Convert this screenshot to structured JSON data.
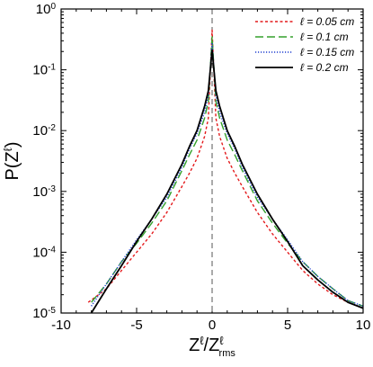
{
  "chart_data": {
    "type": "line",
    "xlabel": {
      "main": "Z",
      "sup": "ℓ",
      "sep": "/Z",
      "sup2": "ℓ",
      "sub": "rms"
    },
    "ylabel": {
      "main": "P(Z",
      "sup": "ℓ",
      "close": ")"
    },
    "xlim": [
      -10,
      10
    ],
    "ylim": [
      1e-05,
      1
    ],
    "yscale": "log",
    "x_ticks": [
      -10,
      -5,
      0,
      5,
      10
    ],
    "x_tick_labels": [
      "-10",
      "-5",
      "0",
      "5",
      "10"
    ],
    "y_ticks": [
      1e-05,
      0.0001,
      0.001,
      0.01,
      0.1,
      1
    ],
    "y_tick_labels": [
      {
        "base": "10",
        "exp": "-5"
      },
      {
        "base": "10",
        "exp": "-4"
      },
      {
        "base": "10",
        "exp": "-3"
      },
      {
        "base": "10",
        "exp": "-2"
      },
      {
        "base": "10",
        "exp": "-1"
      },
      {
        "base": "10",
        "exp": "0"
      }
    ],
    "reference_line_x": 0,
    "legend_position": "top-right",
    "series": [
      {
        "name": "ℓ = 0.05 cm",
        "color": "#e41a1c",
        "dash": "short-dash",
        "x": [
          -8.2,
          -7,
          -6,
          -5,
          -4,
          -3,
          -2,
          -1.5,
          -1,
          -0.5,
          -0.25,
          0,
          0.25,
          0.5,
          1,
          1.5,
          2,
          3,
          4,
          5,
          6,
          7,
          8,
          9,
          10
        ],
        "y": [
          1.5e-05,
          2.5e-05,
          5e-05,
          0.0001,
          0.0002,
          0.00045,
          0.0012,
          0.002,
          0.0035,
          0.008,
          0.016,
          0.45,
          0.016,
          0.008,
          0.0035,
          0.002,
          0.0012,
          0.00045,
          0.0002,
          0.0001,
          5e-05,
          3e-05,
          2e-05,
          1.5e-05,
          1.2e-05
        ]
      },
      {
        "name": "ℓ = 0.1 cm",
        "color": "#33a02c",
        "dash": "long-dash",
        "x": [
          -8,
          -7,
          -6,
          -5,
          -4,
          -3,
          -2,
          -1.5,
          -1,
          -0.5,
          -0.25,
          0,
          0.25,
          0.5,
          1,
          1.5,
          2,
          3,
          4,
          5,
          6,
          7,
          8,
          9,
          10
        ],
        "y": [
          1.5e-05,
          3e-05,
          7e-05,
          0.00014,
          0.0003,
          0.0007,
          0.0022,
          0.004,
          0.007,
          0.016,
          0.03,
          0.35,
          0.03,
          0.016,
          0.007,
          0.004,
          0.0022,
          0.0007,
          0.0003,
          0.00014,
          7e-05,
          4e-05,
          2.5e-05,
          1.6e-05,
          1.3e-05
        ]
      },
      {
        "name": "ℓ = 0.15 cm",
        "color": "#1f3fd1",
        "dash": "dotted",
        "x": [
          -8,
          -7,
          -6,
          -5,
          -4,
          -3,
          -2,
          -1.5,
          -1,
          -0.5,
          -0.25,
          0,
          0.25,
          0.5,
          1,
          1.5,
          2,
          3,
          4,
          5,
          6,
          7,
          8,
          9,
          10
        ],
        "y": [
          1.3e-05,
          3e-05,
          7e-05,
          0.00016,
          0.00035,
          0.0008,
          0.0025,
          0.005,
          0.009,
          0.02,
          0.038,
          0.28,
          0.038,
          0.02,
          0.009,
          0.005,
          0.0025,
          0.0008,
          0.00035,
          0.00016,
          7e-05,
          4e-05,
          2.5e-05,
          1.6e-05,
          1.3e-05
        ]
      },
      {
        "name": "ℓ = 0.2 cm",
        "color": "#000000",
        "dash": "solid",
        "x": [
          -8,
          -7,
          -6,
          -5,
          -4,
          -3,
          -2,
          -1.5,
          -1,
          -0.5,
          -0.25,
          0,
          0.25,
          0.5,
          1,
          1.5,
          2,
          3,
          4,
          5,
          6,
          7,
          8,
          9,
          10
        ],
        "y": [
          1e-05,
          2.5e-05,
          6e-05,
          0.00015,
          0.00035,
          0.0009,
          0.0028,
          0.0055,
          0.01,
          0.025,
          0.045,
          0.21,
          0.045,
          0.025,
          0.01,
          0.0055,
          0.0028,
          0.0009,
          0.00035,
          0.00015,
          6e-05,
          3.5e-05,
          2.2e-05,
          1.5e-05,
          1.2e-05
        ]
      }
    ]
  }
}
